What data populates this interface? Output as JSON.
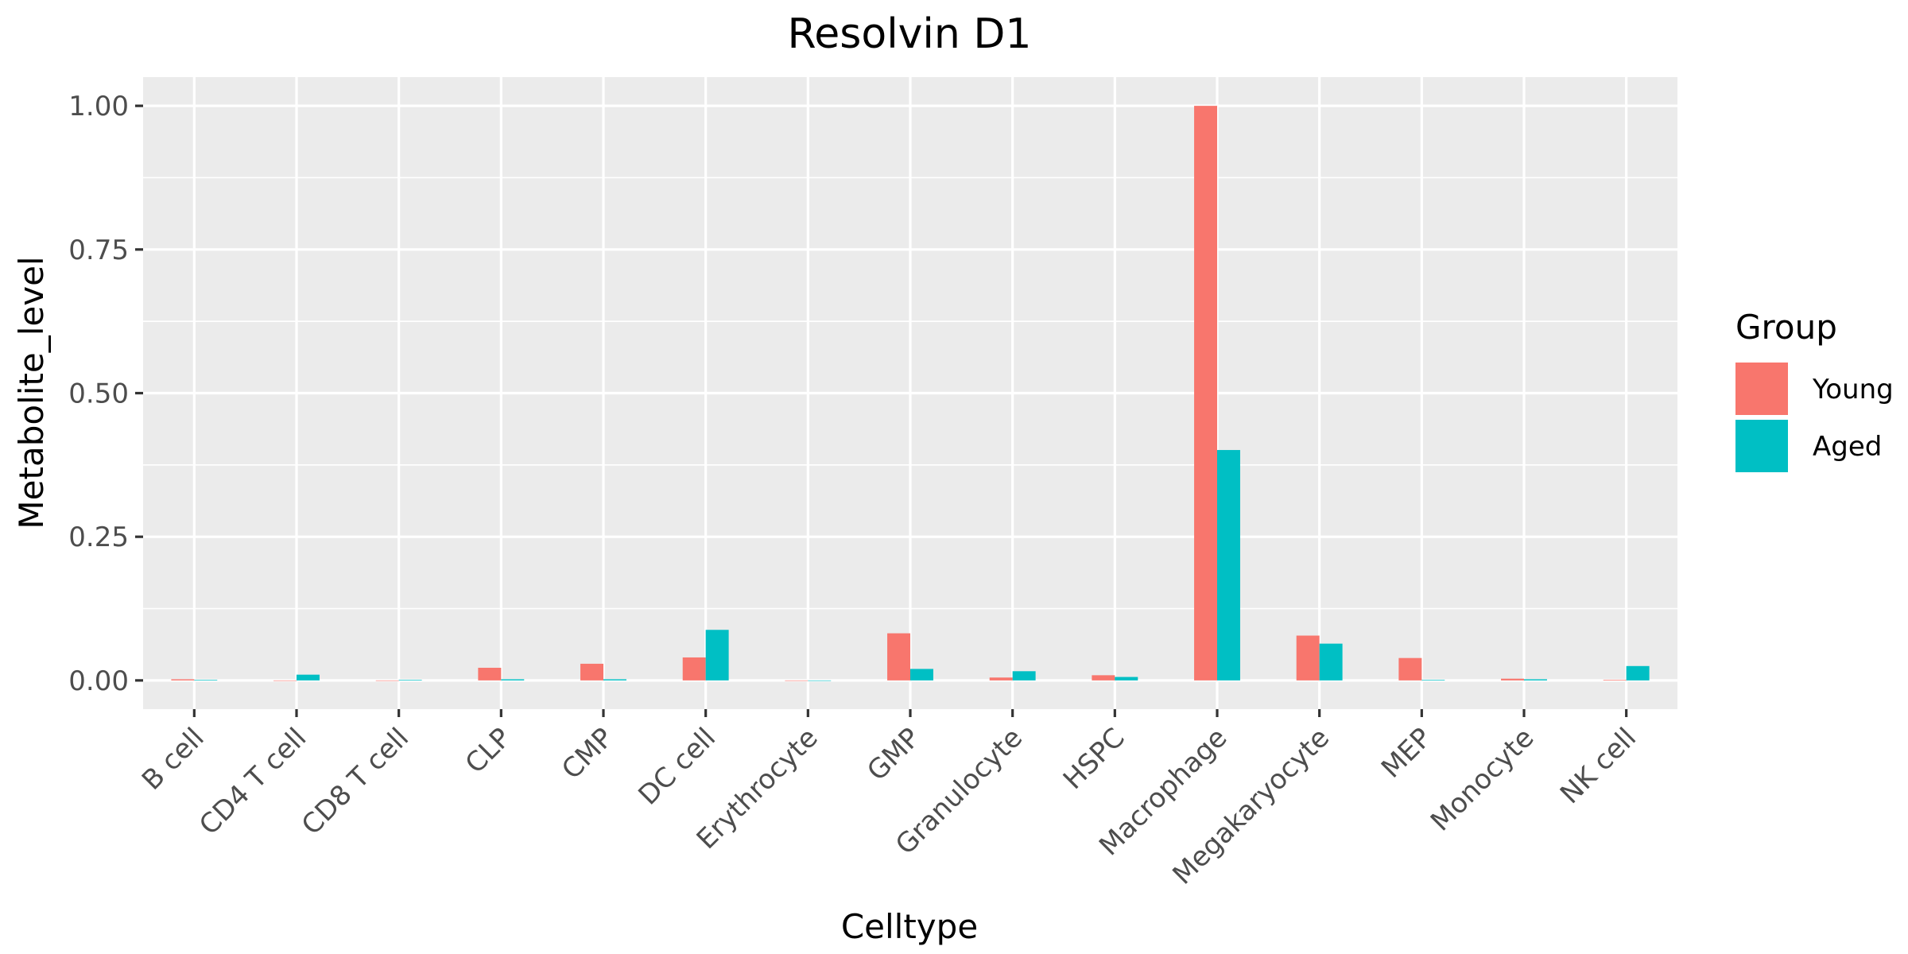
{
  "chart_data": {
    "type": "bar",
    "title": "Resolvin D1",
    "xlabel": "Celltype",
    "ylabel": "Metabolite_level",
    "ylim": [
      -0.05,
      1.05
    ],
    "yticks": [
      0.0,
      0.25,
      0.5,
      0.75,
      1.0
    ],
    "ytick_labels": [
      "0.00",
      "0.25",
      "0.50",
      "0.75",
      "1.00"
    ],
    "grid": true,
    "legend": {
      "title": "Group",
      "position": "right"
    },
    "categories": [
      "B cell",
      "CD4 T cell",
      "CD8 T cell",
      "CLP",
      "CMP",
      "DC cell",
      "Erythrocyte",
      "GMP",
      "Granulocyte",
      "HSPC",
      "Macrophage",
      "Megakaryocyte",
      "MEP",
      "Monocyte",
      "NK cell"
    ],
    "series": [
      {
        "name": "Young",
        "color": "#F8766D",
        "values": [
          0.002,
          0.0,
          0.0,
          0.022,
          0.029,
          0.04,
          0.0,
          0.082,
          0.005,
          0.009,
          1.0,
          0.078,
          0.039,
          0.003,
          0.001
        ]
      },
      {
        "name": "Aged",
        "color": "#00BFC4",
        "values": [
          0.001,
          0.01,
          0.001,
          0.002,
          0.002,
          0.088,
          0.0,
          0.02,
          0.016,
          0.006,
          0.401,
          0.064,
          0.001,
          0.002,
          0.025
        ]
      }
    ]
  }
}
